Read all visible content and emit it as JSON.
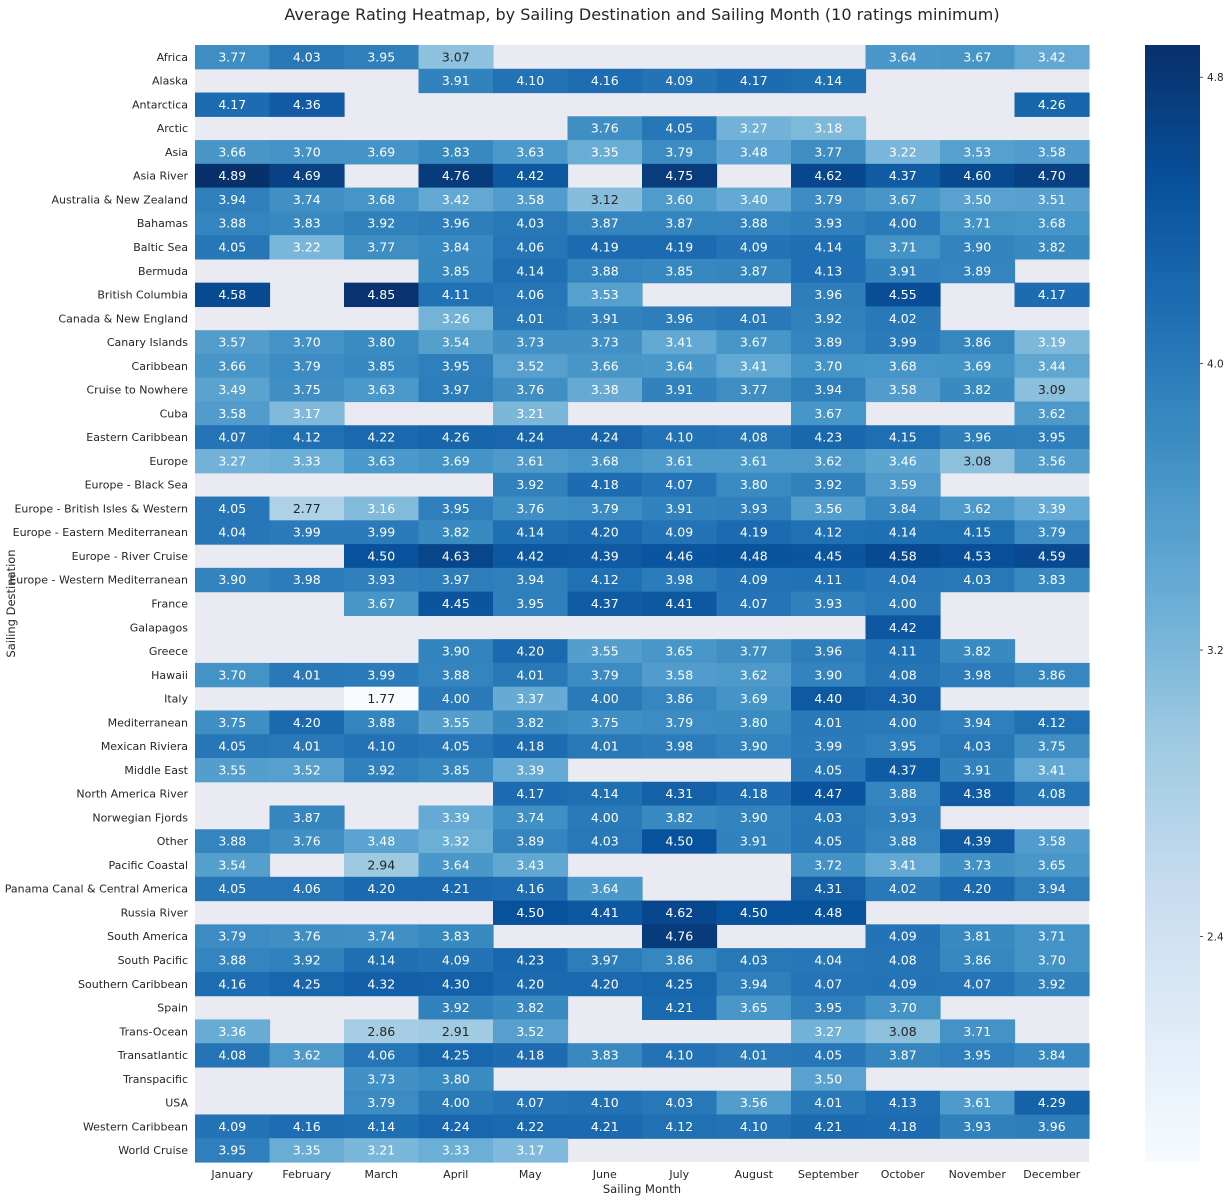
{
  "chart_data": {
    "type": "heatmap",
    "title": "Average Rating Heatmap, by Sailing Destination and Sailing Month (10 ratings minimum)",
    "xlabel": "Sailing Month",
    "ylabel": "Sailing Destination",
    "x_categories": [
      "January",
      "February",
      "March",
      "April",
      "May",
      "June",
      "July",
      "August",
      "September",
      "October",
      "November",
      "December"
    ],
    "y_categories": [
      "Africa",
      "Alaska",
      "Antarctica",
      "Arctic",
      "Asia",
      "Asia River",
      "Australia & New Zealand",
      "Bahamas",
      "Baltic Sea",
      "Bermuda",
      "British Columbia",
      "Canada & New England",
      "Canary Islands",
      "Caribbean",
      "Cruise to Nowhere",
      "Cuba",
      "Eastern Caribbean",
      "Europe",
      "Europe - Black Sea",
      "Europe - British Isles & Western",
      "Europe - Eastern Mediterranean",
      "Europe - River Cruise",
      "Europe - Western Mediterranean",
      "France",
      "Galapagos",
      "Greece",
      "Hawaii",
      "Italy",
      "Mediterranean",
      "Mexican Riviera",
      "Middle East",
      "North America River",
      "Norwegian Fjords",
      "Other",
      "Pacific Coastal",
      "Panama Canal & Central America",
      "Russia River",
      "South America",
      "South Pacific",
      "Southern Caribbean",
      "Spain",
      "Trans-Ocean",
      "Transatlantic",
      "Transpacific",
      "USA",
      "Western Caribbean",
      "World Cruise"
    ],
    "values": [
      [
        3.77,
        4.03,
        3.95,
        3.07,
        null,
        null,
        null,
        null,
        null,
        3.64,
        3.67,
        3.42
      ],
      [
        null,
        null,
        null,
        3.91,
        4.1,
        4.16,
        4.09,
        4.17,
        4.14,
        null,
        null,
        null
      ],
      [
        4.17,
        4.36,
        null,
        null,
        null,
        null,
        null,
        null,
        null,
        null,
        null,
        4.26
      ],
      [
        null,
        null,
        null,
        null,
        null,
        3.76,
        4.05,
        3.27,
        3.18,
        null,
        null,
        null
      ],
      [
        3.66,
        3.7,
        3.69,
        3.83,
        3.63,
        3.35,
        3.79,
        3.48,
        3.77,
        3.22,
        3.53,
        3.58
      ],
      [
        4.89,
        4.69,
        null,
        4.76,
        4.42,
        null,
        4.75,
        null,
        4.62,
        4.37,
        4.6,
        4.7
      ],
      [
        3.94,
        3.74,
        3.68,
        3.42,
        3.58,
        3.12,
        3.6,
        3.4,
        3.79,
        3.67,
        3.5,
        3.51
      ],
      [
        3.88,
        3.83,
        3.92,
        3.96,
        4.03,
        3.87,
        3.87,
        3.88,
        3.93,
        4.0,
        3.71,
        3.68
      ],
      [
        4.05,
        3.22,
        3.77,
        3.84,
        4.06,
        4.19,
        4.19,
        4.09,
        4.14,
        3.71,
        3.9,
        3.82
      ],
      [
        null,
        null,
        null,
        3.85,
        4.14,
        3.88,
        3.85,
        3.87,
        4.13,
        3.91,
        3.89,
        null
      ],
      [
        4.58,
        null,
        4.85,
        4.11,
        4.06,
        3.53,
        null,
        null,
        3.96,
        4.55,
        null,
        4.17
      ],
      [
        null,
        null,
        null,
        3.26,
        4.01,
        3.91,
        3.96,
        4.01,
        3.92,
        4.02,
        null,
        null
      ],
      [
        3.57,
        3.7,
        3.8,
        3.54,
        3.73,
        3.73,
        3.41,
        3.67,
        3.89,
        3.99,
        3.86,
        3.19
      ],
      [
        3.66,
        3.79,
        3.85,
        3.95,
        3.52,
        3.66,
        3.64,
        3.41,
        3.7,
        3.68,
        3.69,
        3.44
      ],
      [
        3.49,
        3.75,
        3.63,
        3.97,
        3.76,
        3.38,
        3.91,
        3.77,
        3.94,
        3.58,
        3.82,
        3.09
      ],
      [
        3.58,
        3.17,
        null,
        null,
        3.21,
        null,
        null,
        null,
        3.67,
        null,
        null,
        3.62
      ],
      [
        4.07,
        4.12,
        4.22,
        4.26,
        4.24,
        4.24,
        4.1,
        4.08,
        4.23,
        4.15,
        3.96,
        3.95
      ],
      [
        3.27,
        3.33,
        3.63,
        3.69,
        3.61,
        3.68,
        3.61,
        3.61,
        3.62,
        3.46,
        3.08,
        3.56
      ],
      [
        null,
        null,
        null,
        null,
        3.92,
        4.18,
        4.07,
        3.8,
        3.92,
        3.59,
        null,
        null
      ],
      [
        4.05,
        2.77,
        3.16,
        3.95,
        3.76,
        3.79,
        3.91,
        3.93,
        3.56,
        3.84,
        3.62,
        3.39
      ],
      [
        4.04,
        3.99,
        3.99,
        3.82,
        4.14,
        4.2,
        4.09,
        4.19,
        4.12,
        4.14,
        4.15,
        3.79
      ],
      [
        null,
        null,
        4.5,
        4.63,
        4.42,
        4.39,
        4.46,
        4.48,
        4.45,
        4.58,
        4.53,
        4.59
      ],
      [
        3.9,
        3.98,
        3.93,
        3.97,
        3.94,
        4.12,
        3.98,
        4.09,
        4.11,
        4.04,
        4.03,
        3.83
      ],
      [
        null,
        null,
        3.67,
        4.45,
        3.95,
        4.37,
        4.41,
        4.07,
        3.93,
        4.0,
        null,
        null
      ],
      [
        null,
        null,
        null,
        null,
        null,
        null,
        null,
        null,
        null,
        4.42,
        null,
        null
      ],
      [
        null,
        null,
        null,
        3.9,
        4.2,
        3.55,
        3.65,
        3.77,
        3.96,
        4.11,
        3.82,
        null
      ],
      [
        3.7,
        4.01,
        3.99,
        3.88,
        4.01,
        3.79,
        3.58,
        3.62,
        3.9,
        4.08,
        3.98,
        3.86
      ],
      [
        null,
        null,
        1.77,
        4.0,
        3.37,
        4.0,
        3.86,
        3.69,
        4.4,
        4.3,
        null,
        null
      ],
      [
        3.75,
        4.2,
        3.88,
        3.55,
        3.82,
        3.75,
        3.79,
        3.8,
        4.01,
        4.0,
        3.94,
        4.12
      ],
      [
        4.05,
        4.01,
        4.1,
        4.05,
        4.18,
        4.01,
        3.98,
        3.9,
        3.99,
        3.95,
        4.03,
        3.75
      ],
      [
        3.55,
        3.52,
        3.92,
        3.85,
        3.39,
        null,
        null,
        null,
        4.05,
        4.37,
        3.91,
        3.41
      ],
      [
        null,
        null,
        null,
        null,
        4.17,
        4.14,
        4.31,
        4.18,
        4.47,
        3.88,
        4.38,
        4.08
      ],
      [
        null,
        3.87,
        null,
        3.39,
        3.74,
        4.0,
        3.82,
        3.9,
        4.03,
        3.93,
        null,
        null
      ],
      [
        3.88,
        3.76,
        3.48,
        3.32,
        3.89,
        4.03,
        4.5,
        3.91,
        4.05,
        3.88,
        4.39,
        3.58
      ],
      [
        3.54,
        null,
        2.94,
        3.64,
        3.43,
        null,
        null,
        null,
        3.72,
        3.41,
        3.73,
        3.65
      ],
      [
        4.05,
        4.06,
        4.2,
        4.21,
        4.16,
        3.64,
        null,
        null,
        4.31,
        4.02,
        4.2,
        3.94
      ],
      [
        null,
        null,
        null,
        null,
        4.5,
        4.41,
        4.62,
        4.5,
        4.48,
        null,
        null,
        null
      ],
      [
        3.79,
        3.76,
        3.74,
        3.83,
        null,
        null,
        4.76,
        null,
        null,
        4.09,
        3.81,
        3.71
      ],
      [
        3.88,
        3.92,
        4.14,
        4.09,
        4.23,
        3.97,
        3.86,
        4.03,
        4.04,
        4.08,
        3.86,
        3.7
      ],
      [
        4.16,
        4.25,
        4.32,
        4.3,
        4.2,
        4.2,
        4.25,
        3.94,
        4.07,
        4.09,
        4.07,
        3.92
      ],
      [
        null,
        null,
        null,
        3.92,
        3.82,
        null,
        4.21,
        3.65,
        3.95,
        3.7,
        null,
        null
      ],
      [
        3.36,
        null,
        2.86,
        2.91,
        3.52,
        null,
        null,
        null,
        3.27,
        3.08,
        3.71,
        null
      ],
      [
        4.08,
        3.62,
        4.06,
        4.25,
        4.18,
        3.83,
        4.1,
        4.01,
        4.05,
        3.87,
        3.95,
        3.84
      ],
      [
        null,
        null,
        3.73,
        3.8,
        null,
        null,
        null,
        null,
        3.5,
        null,
        null,
        null
      ],
      [
        null,
        null,
        3.79,
        4.0,
        4.07,
        4.1,
        4.03,
        3.56,
        4.01,
        4.13,
        3.61,
        4.29
      ],
      [
        4.09,
        4.16,
        4.14,
        4.24,
        4.22,
        4.21,
        4.12,
        4.1,
        4.21,
        4.18,
        3.93,
        3.96
      ],
      [
        3.95,
        3.35,
        3.21,
        3.33,
        3.17,
        null,
        null,
        null,
        null,
        null,
        null,
        null
      ]
    ],
    "color_range": [
      1.77,
      4.89
    ],
    "colormap": "Blues",
    "missing_color": "#eaeaf2",
    "colorbar_ticks": [
      "2.4",
      "3.2",
      "4.0",
      "4.8"
    ]
  }
}
